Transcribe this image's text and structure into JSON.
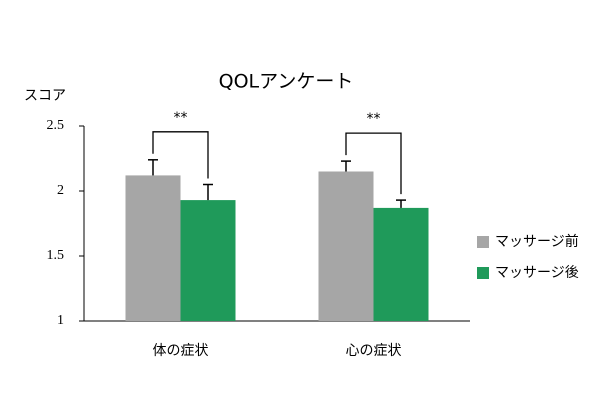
{
  "chart_data": {
    "type": "bar",
    "title": "QOLアンケート",
    "y_label": "スコア",
    "categories": [
      "体の症状",
      "心の症状"
    ],
    "series": [
      {
        "name": "マッサージ前",
        "color": "#a6a6a6",
        "values": [
          2.12,
          2.15
        ],
        "errors": [
          0.12,
          0.08
        ]
      },
      {
        "name": "マッサージ後",
        "color": "#1f9a5a",
        "values": [
          1.93,
          1.87
        ],
        "errors": [
          0.12,
          0.06
        ]
      }
    ],
    "significance": [
      "**",
      "**"
    ],
    "ylim": [
      1,
      2.5
    ],
    "yticks": [
      1,
      1.5,
      2,
      2.5
    ],
    "legend": "right"
  }
}
